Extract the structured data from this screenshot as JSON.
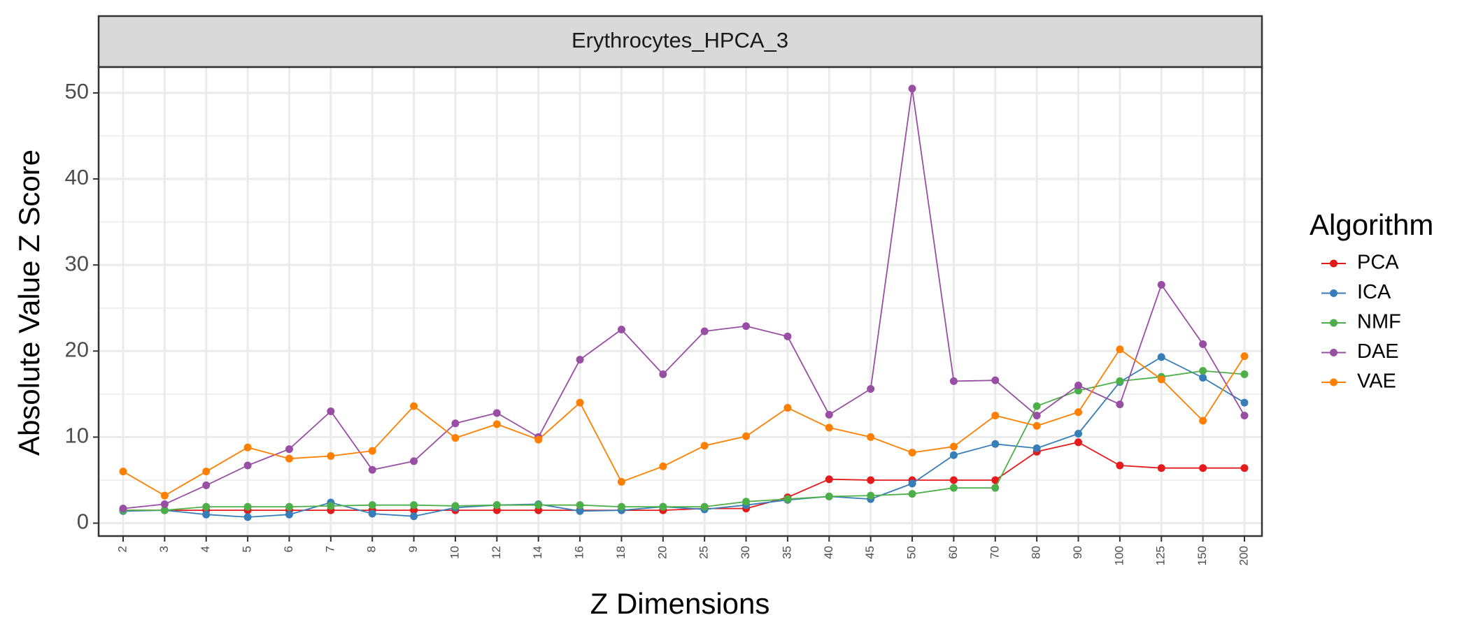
{
  "chart_data": {
    "type": "line",
    "facet_title": "Erythrocytes_HPCA_3",
    "xlabel": "Z Dimensions",
    "ylabel": "Absolute Value Z Score",
    "categories": [
      "2",
      "3",
      "4",
      "5",
      "6",
      "7",
      "8",
      "9",
      "10",
      "12",
      "14",
      "16",
      "18",
      "20",
      "25",
      "30",
      "35",
      "40",
      "45",
      "50",
      "60",
      "70",
      "80",
      "90",
      "100",
      "125",
      "150",
      "200"
    ],
    "ylim": [
      -1.5,
      53
    ],
    "yticks": [
      0,
      10,
      20,
      30,
      40,
      50
    ],
    "grid": true,
    "legend": {
      "title": "Algorithm",
      "position": "right"
    },
    "series": [
      {
        "name": "PCA",
        "color": "#e41a1c",
        "values": [
          1.5,
          1.5,
          1.5,
          1.5,
          1.5,
          1.5,
          1.5,
          1.5,
          1.5,
          1.5,
          1.5,
          1.5,
          1.5,
          1.5,
          1.7,
          1.7,
          3.0,
          5.1,
          5.0,
          5.0,
          5.0,
          5.0,
          8.3,
          9.4,
          6.7,
          6.4,
          6.4,
          6.4
        ]
      },
      {
        "name": "ICA",
        "color": "#377eb8",
        "values": [
          1.4,
          1.5,
          1.0,
          0.7,
          1.0,
          2.4,
          1.1,
          0.8,
          1.8,
          2.1,
          2.2,
          1.4,
          1.5,
          1.9,
          1.6,
          2.1,
          2.7,
          3.1,
          2.8,
          4.6,
          7.9,
          9.2,
          8.7,
          10.4,
          16.4,
          19.3,
          16.9,
          14.0
        ]
      },
      {
        "name": "NMF",
        "color": "#4daf4a",
        "values": [
          1.5,
          1.5,
          1.9,
          1.9,
          1.9,
          2.0,
          2.1,
          2.1,
          2.0,
          2.1,
          2.1,
          2.1,
          1.9,
          1.9,
          1.9,
          2.5,
          2.8,
          3.1,
          3.2,
          3.4,
          4.1,
          4.1,
          13.6,
          15.4,
          16.5,
          17.0,
          17.7,
          17.3
        ]
      },
      {
        "name": "DAE",
        "color": "#984ea3",
        "values": [
          1.7,
          2.2,
          4.4,
          6.7,
          8.6,
          13.0,
          6.2,
          7.2,
          11.6,
          12.8,
          10.0,
          19.0,
          22.5,
          17.3,
          22.3,
          22.9,
          21.7,
          12.6,
          15.6,
          50.5,
          16.5,
          16.6,
          12.5,
          16.0,
          13.8,
          27.7,
          20.8,
          12.5
        ]
      },
      {
        "name": "VAE",
        "color": "#ff7f00",
        "values": [
          6.0,
          3.2,
          6.0,
          8.8,
          7.5,
          7.8,
          8.4,
          13.6,
          9.9,
          11.5,
          9.7,
          14.0,
          4.8,
          6.6,
          9.0,
          10.1,
          13.4,
          11.1,
          10.0,
          8.2,
          8.9,
          12.5,
          11.3,
          12.9,
          20.2,
          16.7,
          11.9,
          19.4
        ]
      }
    ]
  }
}
